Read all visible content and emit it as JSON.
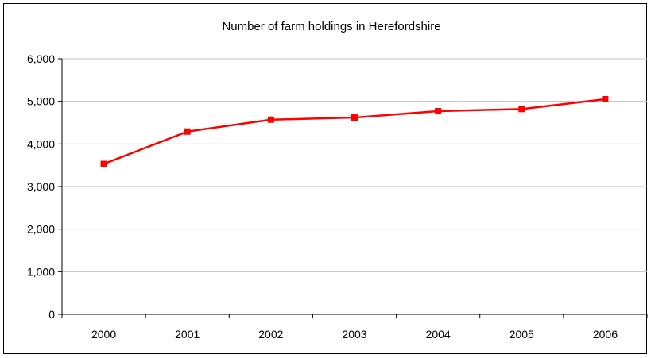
{
  "chart_data": {
    "type": "line",
    "title": "Number of farm holdings in Herefordshire",
    "xlabel": "",
    "ylabel": "",
    "categories": [
      "2000",
      "2001",
      "2002",
      "2003",
      "2004",
      "2005",
      "2006"
    ],
    "series": [
      {
        "values": [
          3530,
          4290,
          4570,
          4620,
          4770,
          4820,
          5050
        ],
        "color": "#ff0000",
        "marker": "square"
      }
    ],
    "ylim": [
      0,
      6000
    ],
    "yticks": [
      0,
      1000,
      2000,
      3000,
      4000,
      5000,
      6000
    ],
    "ytick_labels": [
      "0",
      "1,000",
      "2,000",
      "3,000",
      "4,000",
      "5,000",
      "6,000"
    ],
    "grid": true,
    "legend": "none"
  }
}
